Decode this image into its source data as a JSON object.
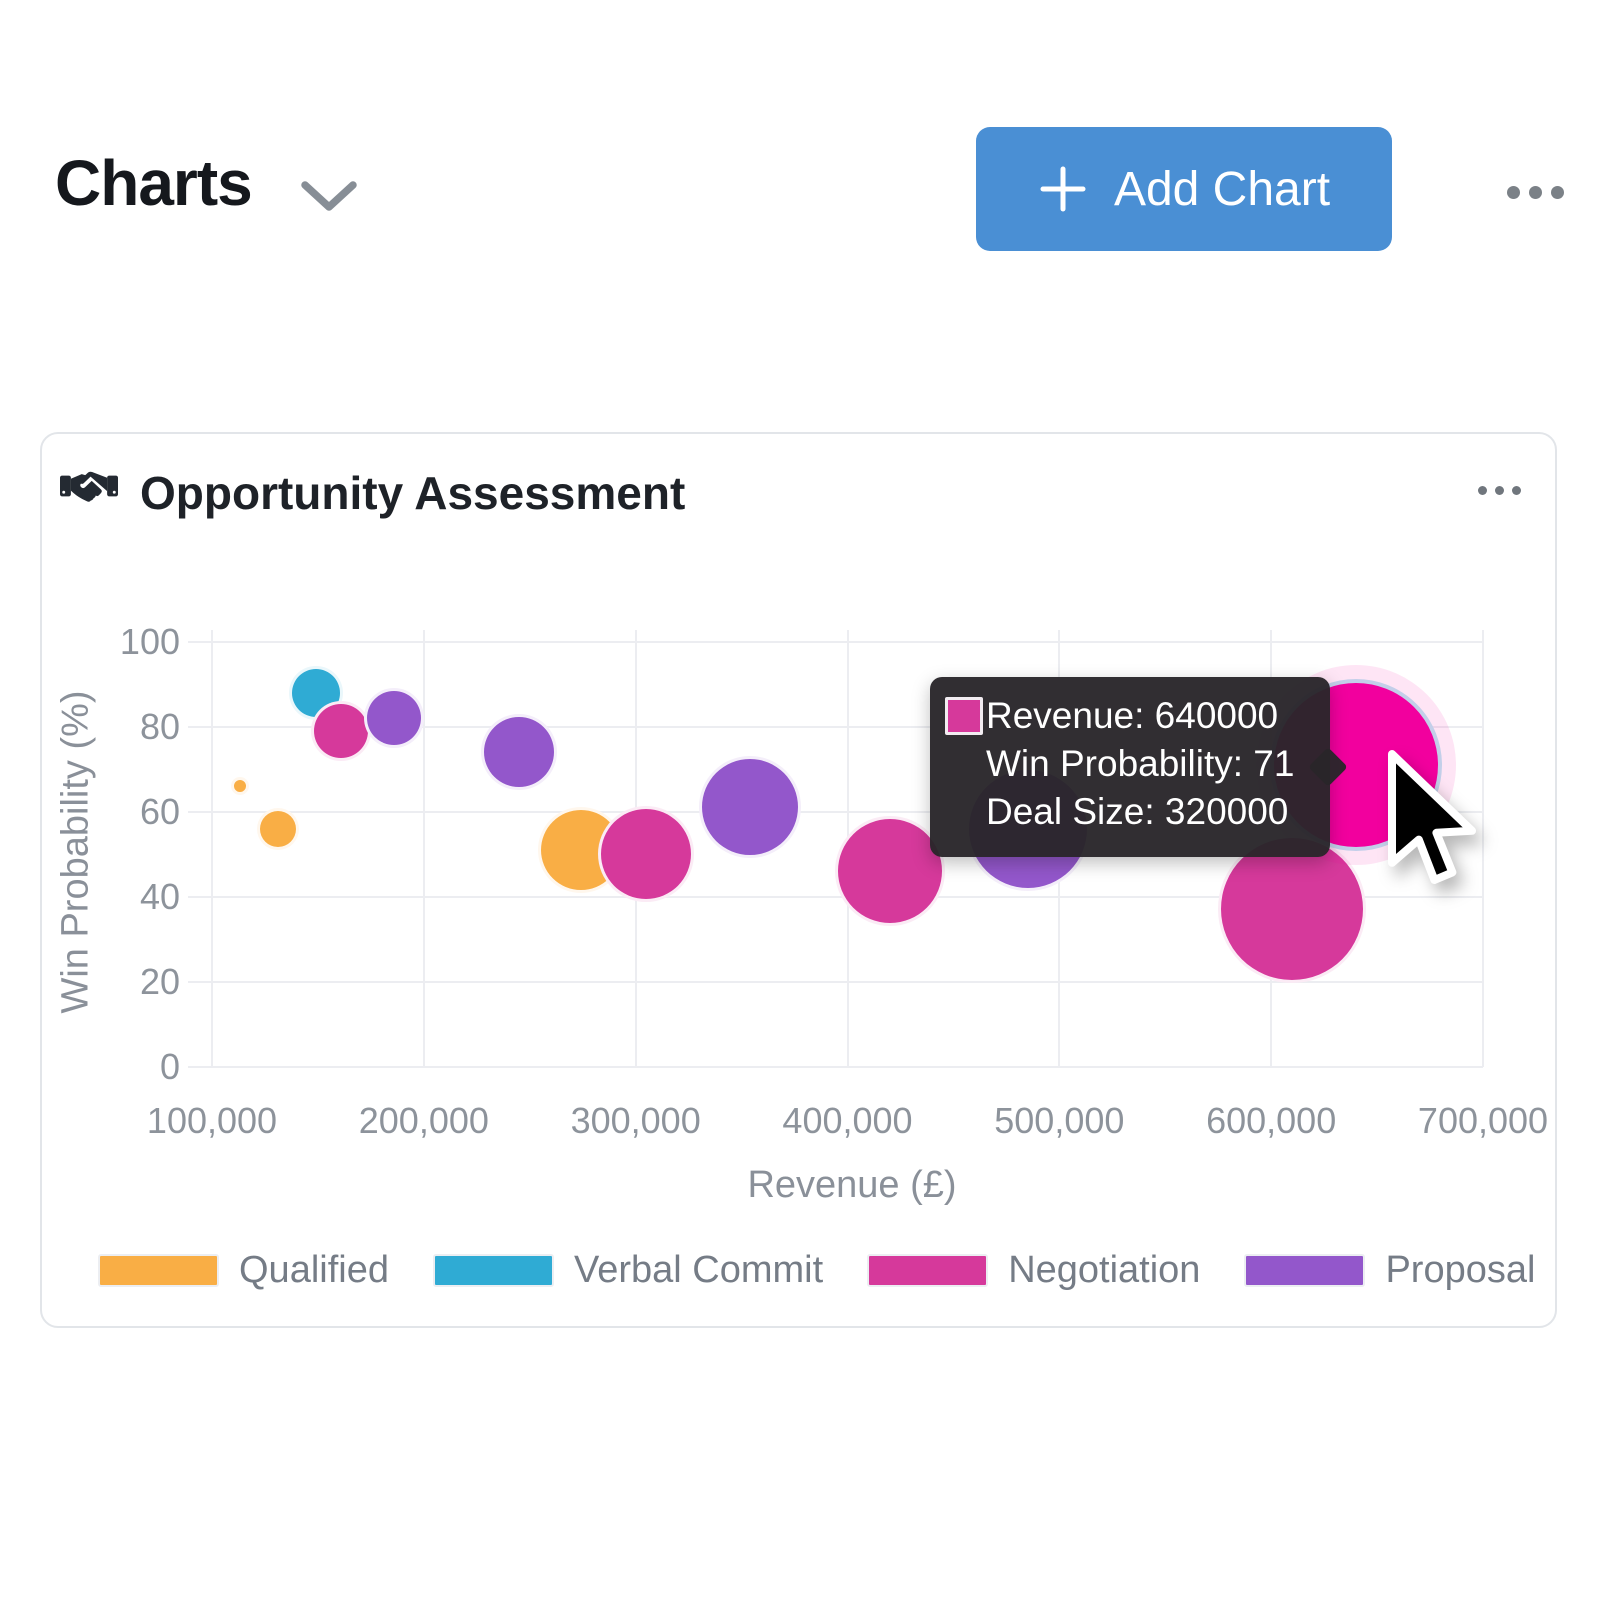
{
  "header": {
    "title": "Charts",
    "add_chart_label": "Add Chart",
    "accent_color": "#4a8fd4"
  },
  "card": {
    "title": "Opportunity Assessment"
  },
  "tooltip": {
    "swatch_color": "#d6399b",
    "lines": [
      "Revenue: 640000",
      "Win Probability: 71",
      "Deal Size: 320000"
    ]
  },
  "chart_data": {
    "type": "scatter",
    "subtype": "bubble",
    "title": "Opportunity Assessment",
    "xlabel": "Revenue (£)",
    "ylabel": "Win Probability (%)",
    "x_range": [
      100000,
      700000
    ],
    "y_range": [
      0,
      100
    ],
    "x_ticks": [
      {
        "value": 100000,
        "label": "100,000"
      },
      {
        "value": 200000,
        "label": "200,000"
      },
      {
        "value": 300000,
        "label": "300,000"
      },
      {
        "value": 400000,
        "label": "400,000"
      },
      {
        "value": 500000,
        "label": "500,000"
      },
      {
        "value": 600000,
        "label": "600,000"
      },
      {
        "value": 700000,
        "label": "700,000"
      }
    ],
    "y_ticks": [
      {
        "value": 0,
        "label": "0"
      },
      {
        "value": 20,
        "label": "20"
      },
      {
        "value": 40,
        "label": "40"
      },
      {
        "value": 60,
        "label": "60"
      },
      {
        "value": 80,
        "label": "80"
      },
      {
        "value": 100,
        "label": "100"
      }
    ],
    "grid": true,
    "legend_position": "bottom",
    "series": [
      {
        "name": "Qualified",
        "color": "#f9ae45",
        "points": [
          {
            "revenue": 113000,
            "win_probability": 66,
            "radius_px": 9
          },
          {
            "revenue": 131000,
            "win_probability": 56,
            "radius_px": 21
          },
          {
            "revenue": 274000,
            "win_probability": 51,
            "radius_px": 43
          }
        ]
      },
      {
        "name": "Verbal Commit",
        "color": "#2fabd4",
        "points": [
          {
            "revenue": 149000,
            "win_probability": 88,
            "radius_px": 27
          }
        ]
      },
      {
        "name": "Negotiation",
        "color": "#d6399b",
        "points": [
          {
            "revenue": 161000,
            "win_probability": 79,
            "radius_px": 30
          },
          {
            "revenue": 305000,
            "win_probability": 50,
            "radius_px": 48
          },
          {
            "revenue": 420000,
            "win_probability": 46,
            "radius_px": 55
          },
          {
            "revenue": 610000,
            "win_probability": 37,
            "radius_px": 74
          },
          {
            "revenue": 640000,
            "win_probability": 71,
            "radius_px": 86,
            "highlighted": true,
            "highlight_color": "#f2009e",
            "deal_size": 320000
          }
        ]
      },
      {
        "name": "Proposal",
        "color": "#9357cb",
        "points": [
          {
            "revenue": 186000,
            "win_probability": 82,
            "radius_px": 30
          },
          {
            "revenue": 245000,
            "win_probability": 74,
            "radius_px": 38
          },
          {
            "revenue": 354000,
            "win_probability": 61,
            "radius_px": 51
          },
          {
            "revenue": 485000,
            "win_probability": 56,
            "radius_px": 62
          }
        ]
      }
    ]
  }
}
